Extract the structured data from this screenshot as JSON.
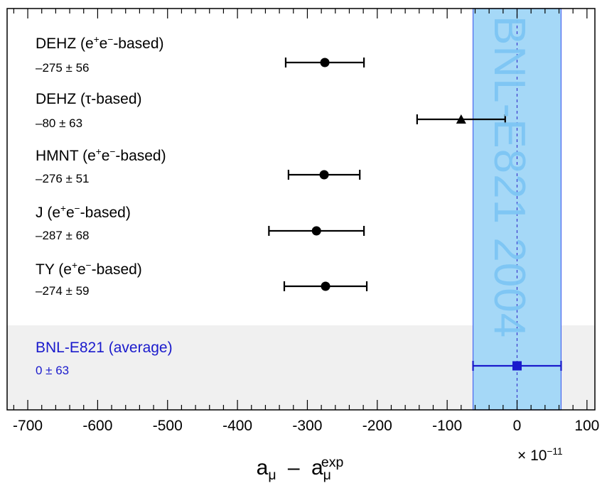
{
  "chart_data": {
    "type": "scatter",
    "title": "",
    "xlabel": "a_μ − a_μ^exp",
    "xlabel_parts": {
      "base1": "a",
      "sub1": "μ",
      "minus": "–",
      "base2": "a",
      "sub2": "μ",
      "sup2": "exp"
    },
    "x_scale_label": {
      "base": "× 10",
      "exp": "−11"
    },
    "xlim": [
      -720,
      108
    ],
    "xticks": [
      -700,
      -600,
      -500,
      -400,
      -300,
      -200,
      -100,
      0,
      100
    ],
    "xtick_labels": [
      "-700",
      "-600",
      "-500",
      "-400",
      "-300",
      "-200",
      "-100",
      "0",
      "100"
    ],
    "grid": false,
    "band": {
      "label": "BNL-E821 2004",
      "center": 0,
      "halfwidth": 63
    },
    "entries": [
      {
        "name_parts": [
          "DEHZ (e",
          "+",
          "e",
          "−",
          "-based)"
        ],
        "value_text": "–275 ± 56",
        "center": -275,
        "err": 56,
        "marker": "circle",
        "color": "#000000"
      },
      {
        "name_parts": [
          "DEHZ (τ-based)"
        ],
        "value_text": "–80 ± 63",
        "center": -80,
        "err": 63,
        "marker": "triangle",
        "color": "#000000"
      },
      {
        "name_parts": [
          "HMNT (e",
          "+",
          "e",
          "−",
          "-based)"
        ],
        "value_text": "–276 ± 51",
        "center": -276,
        "err": 51,
        "marker": "circle",
        "color": "#000000"
      },
      {
        "name_parts": [
          "J (e",
          "+",
          "e",
          "−",
          "-based)"
        ],
        "value_text": "–287 ± 68",
        "center": -287,
        "err": 68,
        "marker": "circle",
        "color": "#000000"
      },
      {
        "name_parts": [
          "TY (e",
          "+",
          "e",
          "−",
          "-based)"
        ],
        "value_text": "–274 ± 59",
        "center": -274,
        "err": 59,
        "marker": "circle",
        "color": "#000000"
      }
    ],
    "average": {
      "name": "BNL-E821 (average)",
      "value_text": "0 ± 63",
      "center": 0,
      "err": 63,
      "marker": "square",
      "color": "#1a1acc"
    },
    "colors": {
      "band_fill": "#a5d8f7",
      "band_edge": "#4a66ee",
      "avg_background": "#f0f0f0",
      "dashed_line": "#3a3acc"
    }
  }
}
